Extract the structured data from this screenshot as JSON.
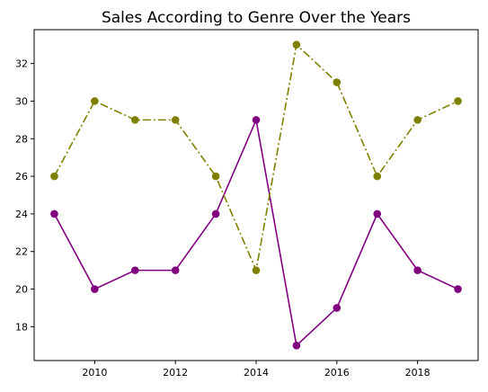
{
  "chart_data": {
    "type": "line",
    "title": "Sales According to Genre Over the Years",
    "xlabel": "",
    "ylabel": "",
    "x": [
      2009,
      2010,
      2011,
      2012,
      2013,
      2014,
      2015,
      2016,
      2017,
      2018,
      2019
    ],
    "xlim": [
      2008.5,
      2019.5
    ],
    "ylim": [
      16.2,
      33.8
    ],
    "x_ticks": [
      2010,
      2012,
      2014,
      2016,
      2018
    ],
    "y_ticks": [
      18,
      20,
      22,
      24,
      26,
      28,
      30,
      32
    ],
    "grid": false,
    "legend": "none",
    "series": [
      {
        "color": "#800080",
        "line_style": "solid",
        "marker": "circle",
        "values": [
          24,
          20,
          21,
          21,
          24,
          29,
          17,
          19,
          24,
          21,
          20
        ]
      },
      {
        "color": "#808000",
        "line_style": "dash-dot",
        "marker": "circle",
        "values": [
          26,
          30,
          29,
          29,
          26,
          21,
          33,
          31,
          26,
          29,
          30
        ]
      }
    ]
  }
}
